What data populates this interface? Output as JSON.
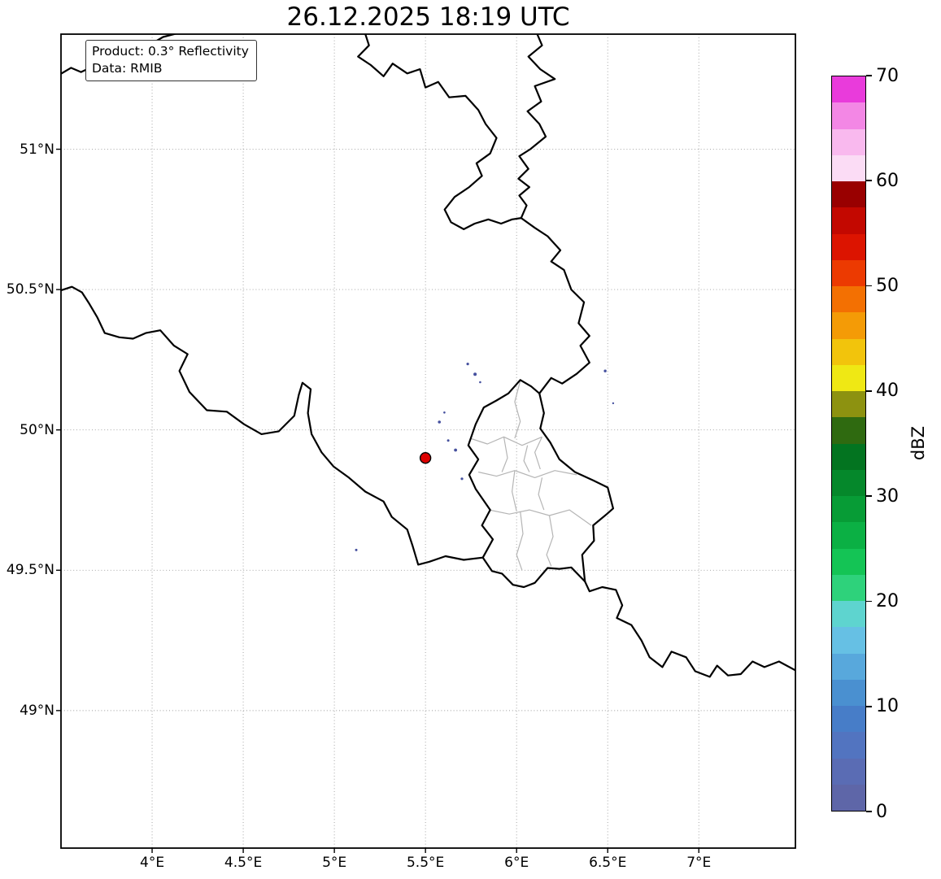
{
  "title": "26.12.2025 18:19 UTC",
  "annotation": {
    "product": "Product: 0.3° Reflectivity",
    "data_source": "Data: RMIB"
  },
  "axes": {
    "extent": {
      "lon_min": 3.5,
      "lon_max": 7.53,
      "lat_min": 48.51,
      "lat_max": 51.41
    },
    "x_ticks": [
      {
        "value": 4.0,
        "label": "4°E"
      },
      {
        "value": 4.5,
        "label": "4.5°E"
      },
      {
        "value": 5.0,
        "label": "5°E"
      },
      {
        "value": 5.5,
        "label": "5.5°E"
      },
      {
        "value": 6.0,
        "label": "6°E"
      },
      {
        "value": 6.5,
        "label": "6.5°E"
      },
      {
        "value": 7.0,
        "label": "7°E"
      }
    ],
    "y_ticks": [
      {
        "value": 49.0,
        "label": "49°N"
      },
      {
        "value": 49.5,
        "label": "49.5°N"
      },
      {
        "value": 50.0,
        "label": "50°N"
      },
      {
        "value": 50.5,
        "label": "50.5°N"
      },
      {
        "value": 51.0,
        "label": "51°N"
      }
    ]
  },
  "map": {
    "borders": {
      "country": [
        {
          "name": "be-nl-border-zeeland",
          "points": [
            [
              3.49,
              51.265
            ],
            [
              3.555,
              51.29
            ],
            [
              3.61,
              51.275
            ],
            [
              3.66,
              51.29
            ],
            [
              3.7,
              51.26
            ],
            [
              3.755,
              51.27
            ],
            [
              3.79,
              51.315
            ],
            [
              3.825,
              51.285
            ],
            [
              3.855,
              51.25
            ],
            [
              3.895,
              51.3
            ],
            [
              3.935,
              51.35
            ],
            [
              3.995,
              51.375
            ],
            [
              4.06,
              51.4
            ],
            [
              4.15,
              51.415
            ],
            [
              4.24,
              51.435
            ]
          ]
        },
        {
          "name": "be-nl-border",
          "points": [
            [
              5.16,
              51.43
            ],
            [
              5.19,
              51.37
            ],
            [
              5.13,
              51.33
            ],
            [
              5.2,
              51.3
            ],
            [
              5.27,
              51.26
            ],
            [
              5.32,
              51.305
            ],
            [
              5.4,
              51.27
            ],
            [
              5.47,
              51.285
            ],
            [
              5.5,
              51.22
            ],
            [
              5.57,
              51.24
            ],
            [
              5.63,
              51.185
            ],
            [
              5.72,
              51.19
            ],
            [
              5.79,
              51.14
            ],
            [
              5.83,
              51.09
            ],
            [
              5.89,
              51.04
            ],
            [
              5.855,
              50.985
            ],
            [
              5.78,
              50.95
            ],
            [
              5.81,
              50.905
            ],
            [
              5.74,
              50.865
            ],
            [
              5.66,
              50.83
            ],
            [
              5.605,
              50.785
            ],
            [
              5.64,
              50.74
            ],
            [
              5.71,
              50.715
            ],
            [
              5.77,
              50.735
            ],
            [
              5.845,
              50.75
            ],
            [
              5.915,
              50.735
            ],
            [
              5.975,
              50.75
            ],
            [
              6.025,
              50.755
            ]
          ]
        },
        {
          "name": "nl-de-border",
          "points": [
            [
              6.1,
              51.43
            ],
            [
              6.14,
              51.37
            ],
            [
              6.065,
              51.33
            ],
            [
              6.13,
              51.285
            ],
            [
              6.21,
              51.25
            ],
            [
              6.1,
              51.225
            ],
            [
              6.135,
              51.17
            ],
            [
              6.06,
              51.135
            ],
            [
              6.125,
              51.09
            ],
            [
              6.16,
              51.045
            ],
            [
              6.075,
              51.0
            ],
            [
              6.015,
              50.975
            ],
            [
              6.065,
              50.93
            ],
            [
              6.01,
              50.895
            ],
            [
              6.07,
              50.865
            ],
            [
              6.015,
              50.835
            ],
            [
              6.055,
              50.8
            ],
            [
              6.025,
              50.755
            ]
          ]
        },
        {
          "name": "be-de-border",
          "points": [
            [
              6.025,
              50.755
            ],
            [
              6.1,
              50.72
            ],
            [
              6.17,
              50.69
            ],
            [
              6.24,
              50.64
            ],
            [
              6.19,
              50.6
            ],
            [
              6.26,
              50.57
            ],
            [
              6.3,
              50.5
            ],
            [
              6.37,
              50.455
            ],
            [
              6.34,
              50.38
            ],
            [
              6.4,
              50.335
            ],
            [
              6.35,
              50.3
            ],
            [
              6.4,
              50.24
            ],
            [
              6.33,
              50.2
            ],
            [
              6.25,
              50.165
            ],
            [
              6.19,
              50.185
            ],
            [
              6.125,
              50.13
            ]
          ]
        },
        {
          "name": "luxembourg-border",
          "points": [
            [
              6.125,
              50.13
            ],
            [
              6.15,
              50.06
            ],
            [
              6.13,
              50.005
            ],
            [
              6.185,
              49.955
            ],
            [
              6.235,
              49.895
            ],
            [
              6.32,
              49.85
            ],
            [
              6.42,
              49.82
            ],
            [
              6.5,
              49.795
            ],
            [
              6.53,
              49.72
            ],
            [
              6.495,
              49.7
            ],
            [
              6.42,
              49.66
            ],
            [
              6.425,
              49.605
            ],
            [
              6.36,
              49.555
            ],
            [
              6.375,
              49.46
            ],
            [
              6.3,
              49.51
            ],
            [
              6.235,
              49.505
            ],
            [
              6.17,
              49.508
            ],
            [
              6.1,
              49.455
            ],
            [
              6.04,
              49.44
            ],
            [
              5.98,
              49.448
            ],
            [
              5.92,
              49.488
            ],
            [
              5.865,
              49.497
            ],
            [
              5.815,
              49.545
            ],
            [
              5.87,
              49.61
            ],
            [
              5.81,
              49.66
            ],
            [
              5.855,
              49.715
            ],
            [
              5.775,
              49.79
            ],
            [
              5.74,
              49.84
            ],
            [
              5.79,
              49.895
            ],
            [
              5.735,
              49.945
            ],
            [
              5.775,
              50.02
            ],
            [
              5.82,
              50.08
            ],
            [
              5.89,
              50.105
            ],
            [
              5.955,
              50.13
            ],
            [
              6.02,
              50.178
            ],
            [
              6.08,
              50.155
            ],
            [
              6.125,
              50.13
            ]
          ]
        },
        {
          "name": "be-fr-border",
          "points": [
            [
              3.49,
              50.495
            ],
            [
              3.56,
              50.51
            ],
            [
              3.615,
              50.49
            ],
            [
              3.655,
              50.45
            ],
            [
              3.7,
              50.4
            ],
            [
              3.74,
              50.345
            ],
            [
              3.82,
              50.33
            ],
            [
              3.895,
              50.325
            ],
            [
              3.965,
              50.345
            ],
            [
              4.045,
              50.355
            ],
            [
              4.12,
              50.3
            ],
            [
              4.195,
              50.27
            ],
            [
              4.15,
              50.21
            ],
            [
              4.205,
              50.135
            ],
            [
              4.3,
              50.07
            ],
            [
              4.41,
              50.065
            ],
            [
              4.505,
              50.02
            ],
            [
              4.6,
              49.985
            ],
            [
              4.695,
              49.995
            ],
            [
              4.78,
              50.05
            ],
            [
              4.805,
              50.125
            ],
            [
              4.825,
              50.168
            ],
            [
              4.87,
              50.145
            ],
            [
              4.855,
              50.06
            ],
            [
              4.875,
              49.985
            ],
            [
              4.93,
              49.92
            ],
            [
              4.995,
              49.87
            ],
            [
              5.08,
              49.83
            ],
            [
              5.17,
              49.78
            ],
            [
              5.27,
              49.745
            ],
            [
              5.315,
              49.69
            ],
            [
              5.4,
              49.645
            ],
            [
              5.43,
              49.585
            ],
            [
              5.46,
              49.52
            ],
            [
              5.52,
              49.53
            ],
            [
              5.61,
              49.55
            ],
            [
              5.71,
              49.537
            ],
            [
              5.815,
              49.545
            ]
          ]
        },
        {
          "name": "fr-de-border",
          "points": [
            [
              6.375,
              49.46
            ],
            [
              6.4,
              49.425
            ],
            [
              6.47,
              49.44
            ],
            [
              6.545,
              49.43
            ],
            [
              6.58,
              49.375
            ],
            [
              6.55,
              49.33
            ],
            [
              6.63,
              49.305
            ],
            [
              6.685,
              49.25
            ],
            [
              6.73,
              49.19
            ],
            [
              6.8,
              49.155
            ],
            [
              6.85,
              49.21
            ],
            [
              6.93,
              49.19
            ],
            [
              6.98,
              49.14
            ],
            [
              7.06,
              49.12
            ],
            [
              7.1,
              49.16
            ],
            [
              7.16,
              49.125
            ],
            [
              7.23,
              49.13
            ],
            [
              7.295,
              49.175
            ],
            [
              7.36,
              49.155
            ],
            [
              7.44,
              49.175
            ],
            [
              7.54,
              49.14
            ]
          ]
        }
      ],
      "internal": [
        [
          [
            5.745,
            49.97
          ],
          [
            5.84,
            49.95
          ],
          [
            5.93,
            49.975
          ],
          [
            6.03,
            49.945
          ],
          [
            6.14,
            49.975
          ]
        ],
        [
          [
            5.79,
            49.85
          ],
          [
            5.89,
            49.835
          ],
          [
            5.99,
            49.855
          ],
          [
            6.1,
            49.83
          ],
          [
            6.21,
            49.855
          ],
          [
            6.33,
            49.84
          ]
        ],
        [
          [
            5.85,
            49.715
          ],
          [
            5.96,
            49.7
          ],
          [
            6.07,
            49.715
          ],
          [
            6.18,
            49.695
          ],
          [
            6.29,
            49.715
          ],
          [
            6.41,
            49.66
          ]
        ],
        [
          [
            5.93,
            49.975
          ],
          [
            5.95,
            49.9
          ],
          [
            5.92,
            49.85
          ]
        ],
        [
          [
            6.06,
            49.945
          ],
          [
            6.04,
            49.89
          ],
          [
            6.07,
            49.85
          ]
        ],
        [
          [
            5.99,
            49.855
          ],
          [
            5.975,
            49.78
          ],
          [
            6.0,
            49.71
          ]
        ],
        [
          [
            6.14,
            49.83
          ],
          [
            6.12,
            49.77
          ],
          [
            6.15,
            49.715
          ]
        ],
        [
          [
            6.02,
            49.71
          ],
          [
            6.035,
            49.63
          ],
          [
            6.0,
            49.555
          ],
          [
            6.03,
            49.5
          ]
        ],
        [
          [
            6.18,
            49.695
          ],
          [
            6.2,
            49.62
          ],
          [
            6.165,
            49.555
          ],
          [
            6.19,
            49.515
          ]
        ],
        [
          [
            6.02,
            50.175
          ],
          [
            5.99,
            50.1
          ],
          [
            6.02,
            50.03
          ],
          [
            5.99,
            49.97
          ]
        ],
        [
          [
            6.14,
            49.975
          ],
          [
            6.1,
            49.92
          ],
          [
            6.13,
            49.86
          ]
        ]
      ]
    },
    "radar_marker": {
      "lon": 5.5,
      "lat": 49.9,
      "r": 6.5,
      "color": "#dd0000"
    },
    "echo_color": "#45509e",
    "echoes": [
      {
        "lon": 5.732,
        "lat": 50.235,
        "r": 1.6
      },
      {
        "lon": 5.772,
        "lat": 50.198,
        "r": 2.0
      },
      {
        "lon": 5.8,
        "lat": 50.17,
        "r": 1.3
      },
      {
        "lon": 5.576,
        "lat": 50.028,
        "r": 1.8
      },
      {
        "lon": 5.604,
        "lat": 50.062,
        "r": 1.3
      },
      {
        "lon": 5.625,
        "lat": 49.962,
        "r": 1.5
      },
      {
        "lon": 5.665,
        "lat": 49.928,
        "r": 1.9
      },
      {
        "lon": 5.7,
        "lat": 49.826,
        "r": 1.6
      },
      {
        "lon": 5.12,
        "lat": 49.572,
        "r": 1.5
      },
      {
        "lon": 6.486,
        "lat": 50.21,
        "r": 1.7
      },
      {
        "lon": 6.53,
        "lat": 50.095,
        "r": 1.2
      }
    ]
  },
  "colorbar": {
    "label": "dBZ",
    "min": 0,
    "max": 70,
    "step": 2.5,
    "ticks": [
      0,
      10,
      20,
      30,
      40,
      50,
      60,
      70
    ],
    "colors_bottom_to_top": [
      "#5e66a8",
      "#5a6cb4",
      "#5274c0",
      "#477dc8",
      "#4a90d0",
      "#58a8dc",
      "#66c0e4",
      "#5ed4cf",
      "#2ed27b",
      "#14c455",
      "#0bb044",
      "#079c36",
      "#05882b",
      "#037420",
      "#2f6a10",
      "#8d9210",
      "#efe814",
      "#f2c40c",
      "#f49b06",
      "#f37002",
      "#ec3a01",
      "#dc1400",
      "#c30800",
      "#990000",
      "#fbdcf5",
      "#f9b9ee",
      "#f387e5",
      "#e93bdb"
    ]
  }
}
